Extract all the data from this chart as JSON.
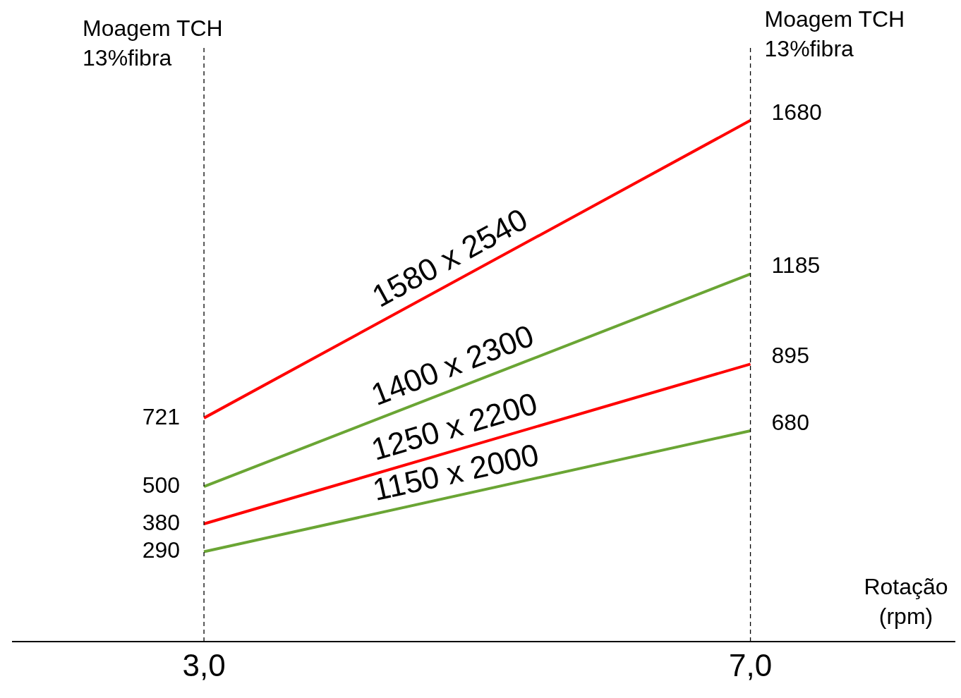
{
  "chart_data": {
    "type": "line",
    "ylabel": "Moagem TCH 13%fibra",
    "y2label": "Moagem TCH 13%fibra",
    "xlabel": "Rotação (rpm)",
    "x": [
      3,
      7
    ],
    "xlim": [
      1.6,
      8.5
    ],
    "xticks": [
      {
        "value": 3,
        "label": "3,0"
      },
      {
        "value": 7,
        "label": "7,0"
      }
    ],
    "series": [
      {
        "name": "1580 x 2540",
        "color": "#ff0000",
        "values": [
          721,
          1680
        ]
      },
      {
        "name": "1400 x 2300",
        "color": "#6aa534",
        "values": [
          500,
          1185
        ]
      },
      {
        "name": "1250 x 2200",
        "color": "#ff0000",
        "values": [
          380,
          895
        ]
      },
      {
        "name": "1150 x 2000",
        "color": "#6aa534",
        "values": [
          290,
          680
        ]
      }
    ],
    "ref_lines": [
      {
        "axis": "x",
        "value": 3,
        "line_style": "dashed",
        "color": "#000000"
      },
      {
        "axis": "x",
        "value": 7,
        "line_style": "dashed",
        "color": "#000000"
      }
    ],
    "data_labels": true,
    "grid": false,
    "legend": false,
    "marker": "none",
    "line_style": "solid"
  }
}
